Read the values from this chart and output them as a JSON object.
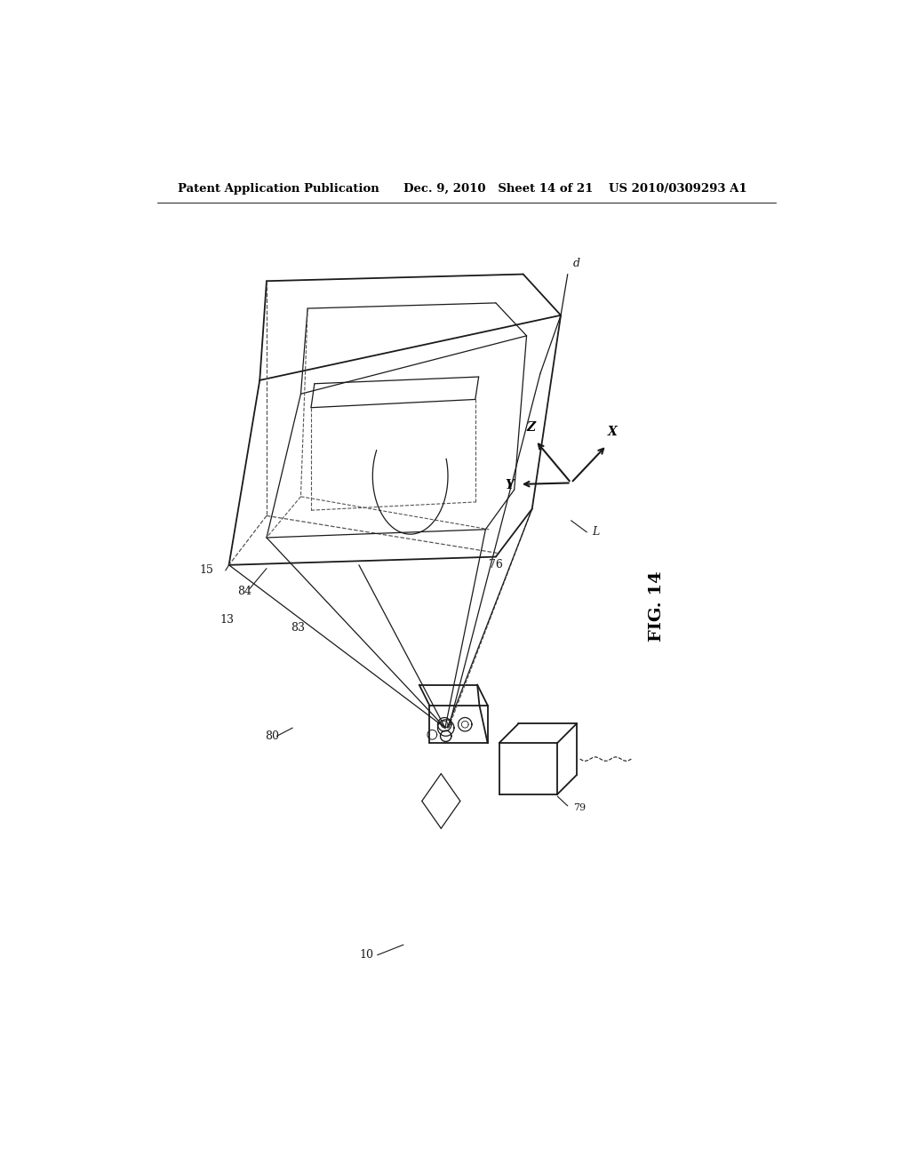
{
  "bg_color": "#ffffff",
  "header_left": "Patent Application Publication",
  "header_mid": "Dec. 9, 2010   Sheet 14 of 21",
  "header_right": "US 2010/0309293 A1",
  "fig_label": "FIG. 14",
  "line_color": "#1a1a1a",
  "dash_color": "#555555"
}
